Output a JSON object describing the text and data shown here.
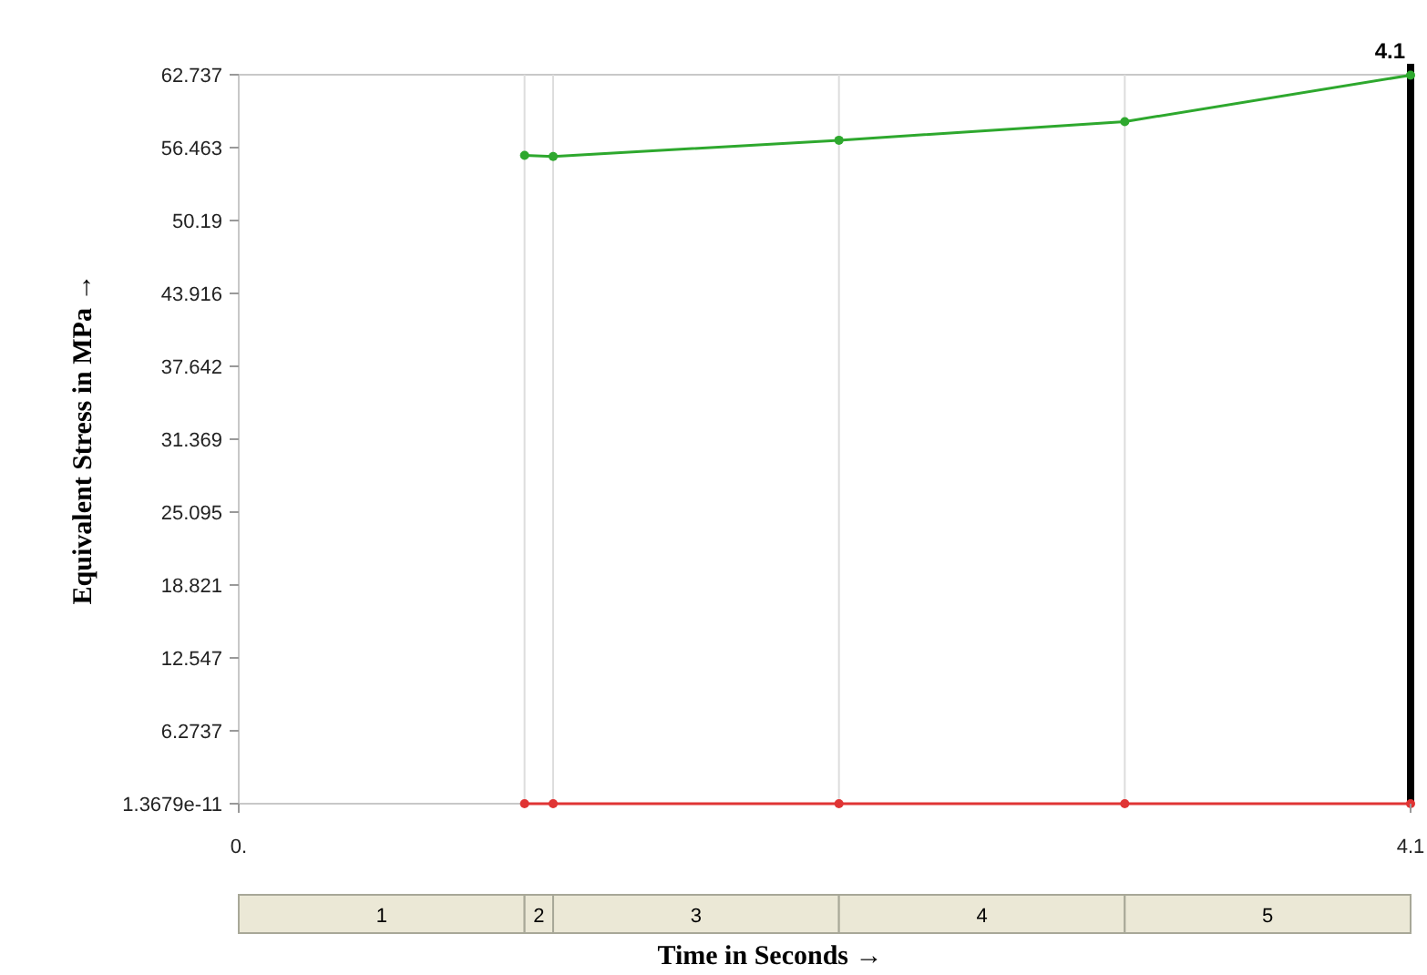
{
  "chart_data": {
    "type": "line",
    "xlabel": "Time in Seconds →",
    "ylabel": "Equivalent Stress in MPa →",
    "x": [
      1,
      1.1,
      2.1,
      3.1,
      4.1
    ],
    "series": [
      {
        "color": "#2ea82e",
        "values": [
          55.8,
          55.7,
          57.1,
          58.7,
          62.7
        ]
      },
      {
        "color": "#e03434",
        "values": [
          1.3679e-11,
          1.3679e-11,
          1.3679e-11,
          1.3679e-11,
          1.3679e-11
        ]
      }
    ],
    "xlim": [
      0,
      4.1
    ],
    "xticks": [
      {
        "value": 0,
        "label": "0."
      },
      4.1
    ],
    "ylim": [
      1.3679e-11,
      62.737
    ],
    "yticks": [
      1.3679e-11,
      6.2737,
      12.547,
      18.821,
      25.095,
      31.369,
      37.642,
      43.916,
      50.19,
      56.463,
      62.737
    ],
    "marker": "circle",
    "grid": false,
    "ref_lines": [
      {
        "axis": "x",
        "value": 1,
        "color": "#dddddd"
      },
      {
        "axis": "x",
        "value": 1.1,
        "color": "#dddddd"
      },
      {
        "axis": "x",
        "value": 2.1,
        "color": "#dddddd"
      },
      {
        "axis": "x",
        "value": 3.1,
        "color": "#dddddd"
      },
      {
        "axis": "x",
        "value": 4.1,
        "label": "4.1",
        "color": "#000000"
      }
    ],
    "annotations": [
      "1",
      "2",
      "3",
      "4",
      "5"
    ]
  }
}
